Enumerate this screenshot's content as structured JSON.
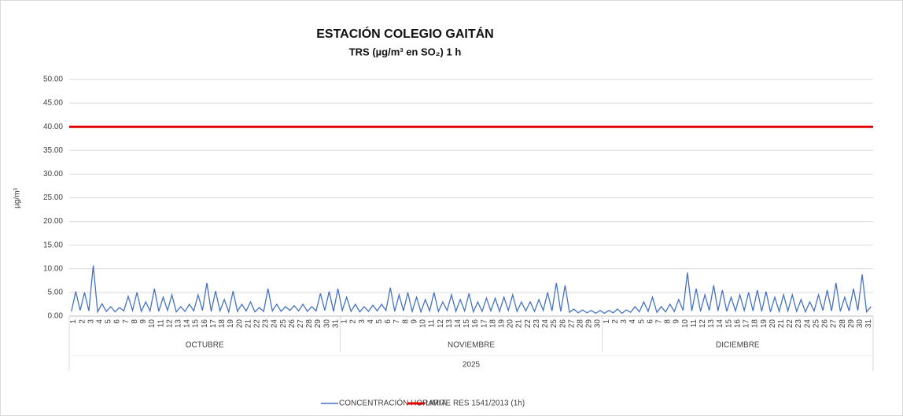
{
  "chart_data": {
    "type": "line",
    "title": "ESTACIÓN COLEGIO GAITÁN",
    "subtitle": "TRS (µg/m³ en SO₂) 1 h",
    "y_label": "µg/m³",
    "x_group_label": "2025",
    "months": [
      "OCTUBRE",
      "NOVIEMBRE",
      "DICIEMBRE"
    ],
    "categories": [
      "1",
      null,
      "2",
      null,
      "3",
      null,
      "4",
      null,
      "5",
      null,
      "6",
      null,
      "7",
      null,
      "8",
      null,
      "9",
      null,
      "10",
      null,
      "11",
      null,
      "12",
      null,
      "13",
      null,
      "14",
      null,
      "15",
      null,
      "16",
      null,
      "17",
      null,
      "18",
      null,
      "19",
      null,
      "20",
      null,
      "21",
      null,
      "22",
      null,
      "23",
      null,
      "24",
      null,
      "25",
      null,
      "26",
      null,
      "27",
      null,
      "28",
      null,
      "29",
      null,
      "30",
      null,
      "31",
      null,
      "1",
      null,
      "2",
      null,
      "3",
      null,
      "4",
      null,
      "5",
      null,
      "6",
      null,
      "7",
      null,
      "8",
      null,
      "9",
      null,
      "10",
      null,
      "11",
      null,
      "12",
      null,
      "13",
      null,
      "14",
      null,
      "15",
      null,
      "16",
      null,
      "17",
      null,
      "18",
      null,
      "19",
      null,
      "20",
      null,
      "21",
      null,
      "22",
      null,
      "23",
      null,
      "24",
      null,
      "25",
      null,
      "26",
      null,
      "27",
      null,
      "28",
      null,
      "29",
      null,
      "30",
      null,
      "1",
      null,
      "2",
      null,
      "3",
      null,
      "4",
      null,
      "5",
      null,
      "6",
      null,
      "7",
      null,
      "8",
      null,
      "9",
      null,
      "10",
      null,
      "11",
      null,
      "12",
      null,
      "13",
      null,
      "14",
      null,
      "15",
      null,
      "16",
      null,
      "17",
      null,
      "18",
      null,
      "19",
      null,
      "20",
      null,
      "21",
      null,
      "22",
      null,
      "23",
      null,
      "24",
      null,
      "25",
      null,
      "26",
      null,
      "27",
      null,
      "28",
      null,
      "29",
      null,
      "30",
      null,
      "31",
      null
    ],
    "series": [
      {
        "name": "CONCENTRACIÓN HORARIA",
        "color": "#4472c4",
        "values": [
          1.0,
          5.2,
          1.2,
          5.0,
          1.1,
          10.7,
          0.9,
          2.6,
          1.0,
          2.0,
          0.9,
          1.8,
          1.1,
          4.2,
          1.2,
          5.0,
          1.0,
          3.0,
          1.1,
          5.8,
          1.0,
          4.0,
          1.2,
          4.5,
          0.9,
          2.0,
          1.0,
          2.5,
          1.1,
          4.5,
          1.2,
          7.0,
          1.0,
          5.3,
          1.1,
          3.5,
          0.9,
          5.3,
          1.0,
          2.5,
          1.1,
          3.0,
          0.9,
          1.8,
          1.0,
          5.8,
          1.1,
          2.5,
          1.0,
          2.0,
          1.2,
          2.2,
          1.1,
          2.5,
          1.0,
          2.0,
          1.1,
          4.8,
          1.2,
          5.2,
          1.0,
          5.8,
          1.2,
          4.0,
          1.0,
          2.5,
          0.9,
          2.0,
          1.0,
          2.3,
          1.1,
          2.5,
          1.2,
          6.0,
          1.0,
          4.5,
          1.1,
          5.0,
          1.0,
          4.0,
          0.9,
          3.5,
          1.1,
          5.0,
          1.0,
          3.0,
          1.2,
          4.5,
          1.0,
          3.5,
          1.1,
          4.8,
          0.9,
          3.0,
          1.0,
          3.8,
          1.1,
          3.8,
          1.0,
          4.0,
          1.2,
          4.5,
          1.0,
          3.0,
          1.1,
          3.0,
          1.0,
          3.5,
          1.2,
          5.0,
          1.1,
          7.0,
          1.0,
          6.5,
          0.8,
          1.5,
          0.7,
          1.3,
          0.7,
          1.2,
          0.6,
          1.2,
          0.6,
          1.2,
          0.7,
          1.5,
          0.6,
          1.3,
          0.8,
          2.0,
          0.9,
          3.0,
          1.0,
          4.0,
          0.8,
          2.0,
          0.9,
          2.5,
          1.0,
          3.5,
          1.2,
          9.2,
          1.1,
          5.8,
          1.0,
          4.5,
          1.2,
          6.5,
          1.1,
          5.5,
          1.0,
          4.0,
          1.1,
          4.5,
          1.2,
          5.0,
          1.1,
          5.5,
          1.0,
          5.2,
          0.9,
          4.0,
          1.0,
          4.5,
          1.1,
          4.5,
          1.0,
          3.5,
          0.9,
          3.0,
          1.1,
          4.5,
          1.2,
          5.5,
          1.1,
          7.0,
          1.0,
          4.0,
          1.1,
          5.8,
          1.2,
          8.8,
          0.9,
          2.0
        ]
      }
    ],
    "limit": {
      "name": "LIMITE RES 1541/2013 (1h)",
      "color": "#e00000",
      "value": 40
    },
    "ylim": [
      0,
      50
    ],
    "yticks": [
      {
        "value": 0,
        "label": "0.00"
      },
      {
        "value": 5,
        "label": "5.00"
      },
      {
        "value": 10,
        "label": "10.00"
      },
      {
        "value": 15,
        "label": "15.00"
      },
      {
        "value": 20,
        "label": "20.00"
      },
      {
        "value": 25,
        "label": "25.00"
      },
      {
        "value": 30,
        "label": "30.00"
      },
      {
        "value": 35,
        "label": "35.00"
      },
      {
        "value": 40,
        "label": "40.00"
      },
      {
        "value": 45,
        "label": "45.00"
      },
      {
        "value": 50,
        "label": "50.00"
      }
    ],
    "grid": true
  }
}
